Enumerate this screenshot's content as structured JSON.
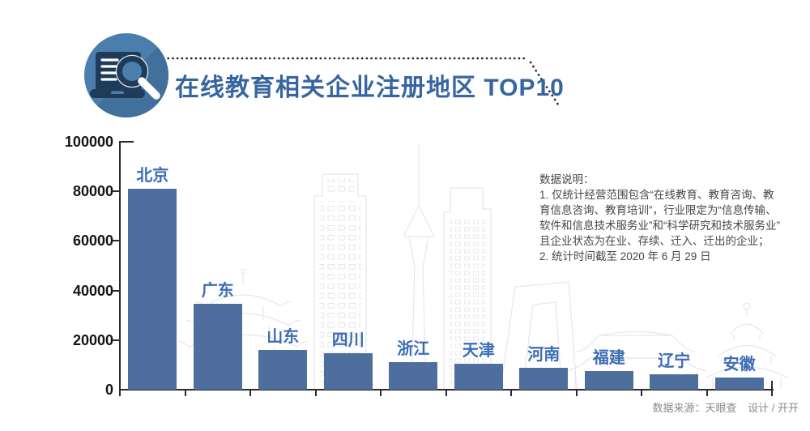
{
  "header": {
    "title": "在线教育相关企业注册地区 TOP10",
    "icon": "laptop-search-icon"
  },
  "notes": {
    "title": "数据说明：",
    "lines": [
      "1. 仅统计经营范围包含“在线教育、教育咨询、教",
      "育信息咨询、教育培训”，行业限定为“信息传输、",
      "软件和信息技术服务业”和“科学研究和技术服务业”",
      "且企业状态为在业、存续、迁入、迁出的企业；",
      "2. 统计时间截至 2020 年 6 月 29 日"
    ]
  },
  "footer": {
    "source": "数据来源：天眼查",
    "design": "设计 / 开开"
  },
  "colors": {
    "bar": "#4e6f9e",
    "bar_label": "#3c6cb5",
    "title": "#37669f",
    "axis": "#2b2b2b",
    "skyline": "#e7e7ea"
  },
  "chart_data": {
    "type": "bar",
    "title": "在线教育相关企业注册地区 TOP10",
    "categories": [
      "北京",
      "广东",
      "山东",
      "四川",
      "浙江",
      "天津",
      "河南",
      "福建",
      "辽宁",
      "安徽"
    ],
    "values": [
      81000,
      34600,
      16000,
      14700,
      11000,
      10600,
      8800,
      7500,
      6300,
      5000
    ],
    "xlabel": "",
    "ylabel": "",
    "ylim": [
      0,
      100000
    ],
    "yticks": [
      0,
      20000,
      40000,
      60000,
      80000,
      100000
    ],
    "grid": false,
    "legend": false,
    "value_labels": "category names above bars"
  }
}
